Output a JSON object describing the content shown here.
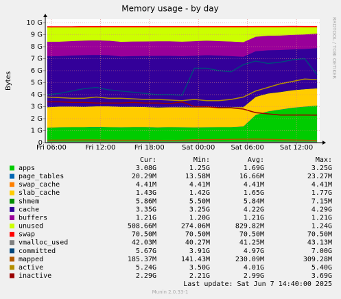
{
  "chart_data": {
    "type": "area",
    "title": "Memory usage - by day",
    "ylabel": "Bytes",
    "watermark": "RRDTOOL / TOBI OETIKER",
    "x": [
      5.5,
      7,
      8.5,
      10,
      11.5,
      13,
      14.5,
      16,
      17.5,
      19,
      20.5,
      22,
      23.5,
      25,
      26.5,
      28,
      29.5,
      31,
      32.5,
      34,
      35.5,
      37,
      38.5
    ],
    "xlim": [
      5.25,
      38.85
    ],
    "xticks": [
      {
        "value": 6,
        "label": "Fri 06:00"
      },
      {
        "value": 12,
        "label": "Fri 12:00"
      },
      {
        "value": 18,
        "label": "Fri 18:00"
      },
      {
        "value": 24,
        "label": "Sat 00:00"
      },
      {
        "value": 30,
        "label": "Sat 06:00"
      },
      {
        "value": 36,
        "label": "Sat 12:00"
      }
    ],
    "ylim": [
      0,
      10
    ],
    "yticks": [
      0,
      {
        "value": 1,
        "label": "1 G"
      },
      {
        "value": 2,
        "label": "2 G"
      },
      {
        "value": 3,
        "label": "3 G"
      },
      {
        "value": 4,
        "label": "4 G"
      },
      {
        "value": 5,
        "label": "5 G"
      },
      {
        "value": 6,
        "label": "6 G"
      },
      {
        "value": 7,
        "label": "7 G"
      },
      {
        "value": 8,
        "label": "8 G"
      },
      {
        "value": 9,
        "label": "9 G"
      },
      {
        "value": 10,
        "label": "10 G"
      }
    ],
    "grid": true,
    "legend_columns": [
      "Cur:",
      "Min:",
      "Avg:",
      "Max:"
    ],
    "series": [
      {
        "name": "apps",
        "color": "#00cc00",
        "stack": true,
        "summary": [
          "3.08G",
          "1.25G",
          "1.69G",
          "3.25G"
        ],
        "values": [
          1.25,
          1.28,
          1.3,
          1.3,
          1.32,
          1.3,
          1.28,
          1.3,
          1.3,
          1.27,
          1.3,
          1.28,
          1.27,
          1.28,
          1.3,
          1.3,
          1.35,
          2.3,
          2.6,
          2.75,
          2.9,
          3.0,
          3.08
        ]
      },
      {
        "name": "page_tables",
        "color": "#0066b3",
        "stack": true,
        "summary": [
          "20.29M",
          "13.58M",
          "16.66M",
          "23.27M"
        ],
        "values": [
          0.014,
          0.015,
          0.015,
          0.016,
          0.016,
          0.016,
          0.016,
          0.017,
          0.017,
          0.017,
          0.017,
          0.017,
          0.016,
          0.016,
          0.016,
          0.016,
          0.017,
          0.019,
          0.02,
          0.021,
          0.022,
          0.02,
          0.02
        ]
      },
      {
        "name": "swap_cache",
        "color": "#ff8000",
        "stack": true,
        "summary": [
          "4.41M",
          "4.41M",
          "4.41M",
          "4.41M"
        ],
        "values": [
          0.0044,
          0.0044,
          0.0044,
          0.0044,
          0.0044,
          0.0044,
          0.0044,
          0.0044,
          0.0044,
          0.0044,
          0.0044,
          0.0044,
          0.0044,
          0.0044,
          0.0044,
          0.0044,
          0.0044,
          0.0044,
          0.0044,
          0.0044,
          0.0044,
          0.0044,
          0.0044
        ]
      },
      {
        "name": "slab_cache",
        "color": "#ffcc00",
        "stack": true,
        "summary": [
          "1.43G",
          "1.42G",
          "1.65G",
          "1.77G"
        ],
        "values": [
          1.7,
          1.72,
          1.7,
          1.68,
          1.7,
          1.72,
          1.7,
          1.68,
          1.66,
          1.65,
          1.64,
          1.65,
          1.66,
          1.65,
          1.64,
          1.65,
          1.6,
          1.5,
          1.48,
          1.45,
          1.45,
          1.44,
          1.43
        ]
      },
      {
        "name": "shmem",
        "color": "#008f00",
        "stack": true,
        "summary": [
          "5.86M",
          "5.50M",
          "5.84M",
          "7.15M"
        ],
        "values": [
          0.0058,
          0.0058,
          0.0058,
          0.0058,
          0.0059,
          0.006,
          0.006,
          0.0058,
          0.0057,
          0.0057,
          0.0058,
          0.0058,
          0.0058,
          0.0058,
          0.0058,
          0.0058,
          0.0059,
          0.007,
          0.0065,
          0.006,
          0.0059,
          0.0059,
          0.0059
        ]
      },
      {
        "name": "cache",
        "color": "#330099",
        "stack": true,
        "summary": [
          "3.35G",
          "3.25G",
          "4.22G",
          "4.29G"
        ],
        "values": [
          4.25,
          4.2,
          4.25,
          4.3,
          4.28,
          4.25,
          4.2,
          4.22,
          4.25,
          4.3,
          4.28,
          4.26,
          4.3,
          4.35,
          4.3,
          4.25,
          4.2,
          3.8,
          3.6,
          3.5,
          3.4,
          3.35,
          3.35
        ]
      },
      {
        "name": "buffers",
        "color": "#990099",
        "stack": true,
        "summary": [
          "1.21G",
          "1.20G",
          "1.21G",
          "1.21G"
        ],
        "values": [
          1.2,
          1.2,
          1.2,
          1.21,
          1.21,
          1.21,
          1.21,
          1.21,
          1.21,
          1.21,
          1.21,
          1.21,
          1.21,
          1.21,
          1.21,
          1.21,
          1.21,
          1.21,
          1.21,
          1.21,
          1.21,
          1.21,
          1.21
        ]
      },
      {
        "name": "unused",
        "color": "#ccff00",
        "stack": true,
        "summary": [
          "508.66M",
          "274.06M",
          "829.82M",
          "1.24G"
        ],
        "values": [
          1.19,
          1.19,
          1.14,
          1.11,
          1.09,
          1.12,
          1.21,
          1.19,
          1.18,
          1.17,
          1.17,
          1.2,
          1.16,
          1.11,
          1.15,
          1.19,
          1.24,
          0.79,
          0.71,
          0.69,
          0.65,
          0.6,
          0.53
        ]
      },
      {
        "name": "swap",
        "color": "#ff0000",
        "stack": true,
        "summary": [
          "70.50M",
          "70.50M",
          "70.50M",
          "70.50M"
        ],
        "values": [
          0.0705,
          0.0705,
          0.0705,
          0.0705,
          0.0705,
          0.0705,
          0.0705,
          0.0705,
          0.0705,
          0.0705,
          0.0705,
          0.0705,
          0.0705,
          0.0705,
          0.0705,
          0.0705,
          0.0705,
          0.0705,
          0.0705,
          0.0705,
          0.0705,
          0.0705,
          0.0705
        ]
      },
      {
        "name": "vmalloc_used",
        "color": "#808080",
        "stack": false,
        "summary": [
          "42.03M",
          "40.27M",
          "41.25M",
          "43.13M"
        ],
        "values": [
          0.04,
          0.04,
          0.04,
          0.041,
          0.041,
          0.041,
          0.041,
          0.041,
          0.041,
          0.041,
          0.041,
          0.041,
          0.041,
          0.041,
          0.041,
          0.041,
          0.042,
          0.042,
          0.042,
          0.042,
          0.042,
          0.042,
          0.042
        ]
      },
      {
        "name": "committed",
        "color": "#00487d",
        "stack": false,
        "summary": [
          "5.67G",
          "3.91G",
          "4.97G",
          "7.00G"
        ],
        "values": [
          4.0,
          4.1,
          4.3,
          4.5,
          4.6,
          4.4,
          4.3,
          4.2,
          4.1,
          4.0,
          4.0,
          3.95,
          6.2,
          6.2,
          6.0,
          5.9,
          6.5,
          6.8,
          6.6,
          6.7,
          6.9,
          7.0,
          5.67
        ]
      },
      {
        "name": "mapped",
        "color": "#b35a00",
        "stack": false,
        "summary": [
          "185.37M",
          "141.43M",
          "230.09M",
          "309.28M"
        ],
        "values": [
          0.2,
          0.21,
          0.22,
          0.23,
          0.22,
          0.21,
          0.2,
          0.2,
          0.19,
          0.19,
          0.18,
          0.2,
          0.24,
          0.25,
          0.26,
          0.27,
          0.29,
          0.3,
          0.28,
          0.25,
          0.22,
          0.2,
          0.18
        ]
      },
      {
        "name": "active",
        "color": "#b38f00",
        "stack": false,
        "summary": [
          "5.24G",
          "3.50G",
          "4.01G",
          "5.40G"
        ],
        "values": [
          3.8,
          3.75,
          3.7,
          3.7,
          3.8,
          3.7,
          3.7,
          3.65,
          3.6,
          3.6,
          3.55,
          3.5,
          3.6,
          3.5,
          3.5,
          3.6,
          3.8,
          4.3,
          4.6,
          4.9,
          5.1,
          5.3,
          5.24
        ]
      },
      {
        "name": "inactive",
        "color": "#990000",
        "stack": false,
        "summary": [
          "2.29G",
          "2.21G",
          "2.99G",
          "3.69G"
        ],
        "values": [
          3.4,
          3.4,
          3.35,
          3.35,
          3.3,
          3.3,
          3.3,
          3.35,
          3.3,
          3.3,
          3.25,
          3.4,
          3.0,
          3.0,
          2.9,
          2.9,
          2.8,
          2.5,
          2.4,
          2.3,
          2.3,
          2.3,
          2.29
        ]
      }
    ],
    "last_update": "Last update:  Sat Jun  7 14:40:00 2025",
    "footer": "Munin 2.0.33-1"
  }
}
